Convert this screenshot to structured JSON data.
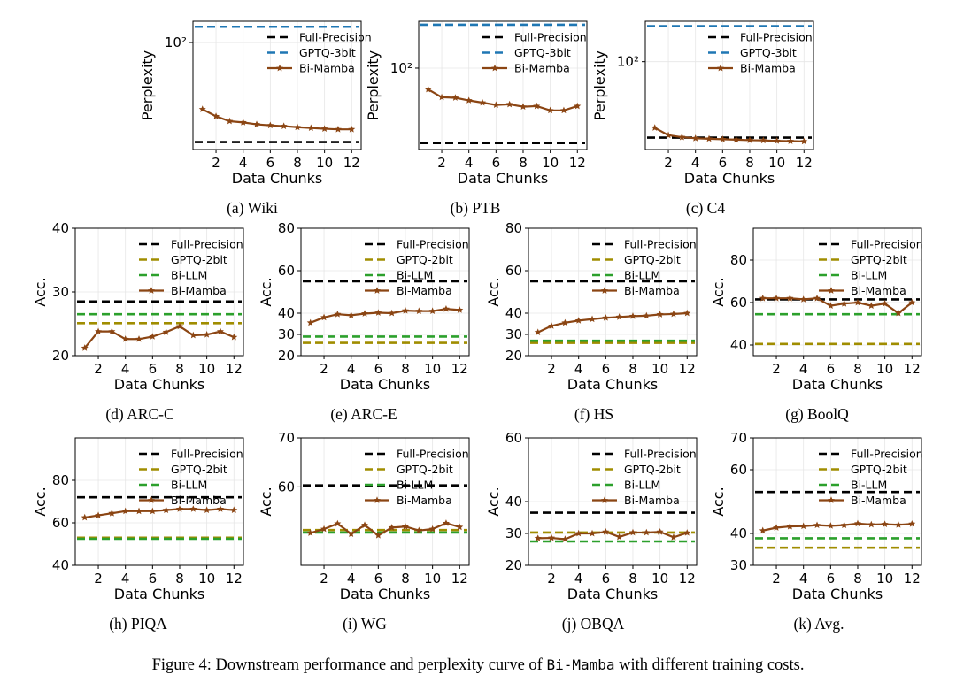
{
  "figure_caption": {
    "prefix": "Figure 4: Downstream performance and perplexity curve of ",
    "model": "Bi-Mamba",
    "suffix": " with different training costs."
  },
  "colors": {
    "full_precision": "#000000",
    "gptq_3bit": "#1f77b4",
    "gptq_2bit": "#a08d00",
    "bi_llm": "#2ca02c",
    "bi_mamba": "#8b4513"
  },
  "chart_data": [
    {
      "id": "wiki",
      "type": "line",
      "subcaption": "(a) Wiki",
      "xlabel": "Data Chunks",
      "ylabel": "Perplexity",
      "yscale": "log",
      "ylim": [
        13,
        150
      ],
      "xlim": [
        0.3,
        12.7
      ],
      "xticks": [
        2,
        4,
        6,
        8,
        10,
        12
      ],
      "yticks": [
        100
      ],
      "yticklabels": [
        "10²"
      ],
      "x": [
        1,
        2,
        3,
        4,
        5,
        6,
        7,
        8,
        9,
        10,
        11,
        12
      ],
      "series": [
        {
          "name": "Full-Precision",
          "style": "dashed",
          "color": "#000000",
          "value": 15
        },
        {
          "name": "GPTQ-3bit",
          "style": "dashed",
          "color": "#1f77b4",
          "value": 135
        },
        {
          "name": "Bi-Mamba",
          "style": "marker",
          "color": "#8b4513",
          "values": [
            28,
            24.5,
            22.3,
            21.8,
            21.0,
            20.6,
            20.3,
            19.9,
            19.6,
            19.3,
            19.1,
            19.1
          ]
        }
      ]
    },
    {
      "id": "ptb",
      "type": "line",
      "subcaption": "(b) PTB",
      "xlabel": "Data Chunks",
      "ylabel": "Perplexity",
      "yscale": "log",
      "ylim": [
        30,
        200
      ],
      "xlim": [
        0.3,
        12.7
      ],
      "xticks": [
        2,
        4,
        6,
        8,
        10,
        12
      ],
      "yticks": [
        100
      ],
      "yticklabels": [
        "10²"
      ],
      "x": [
        1,
        2,
        3,
        4,
        5,
        6,
        7,
        8,
        9,
        10,
        11,
        12
      ],
      "series": [
        {
          "name": "Full-Precision",
          "style": "dashed",
          "color": "#000000",
          "value": 33
        },
        {
          "name": "GPTQ-3bit",
          "style": "dashed",
          "color": "#1f77b4",
          "value": 190
        },
        {
          "name": "Bi-Mamba",
          "style": "marker",
          "color": "#8b4513",
          "values": [
            73,
            65,
            64.5,
            62,
            60,
            58,
            58.5,
            56.5,
            57,
            53.5,
            53.5,
            57
          ]
        }
      ]
    },
    {
      "id": "c4",
      "type": "line",
      "subcaption": "(c) C4",
      "xlabel": "Data Chunks",
      "ylabel": "Perplexity",
      "yscale": "log",
      "ylim": [
        18,
        220
      ],
      "xlim": [
        0.3,
        12.7
      ],
      "xticks": [
        2,
        4,
        6,
        8,
        10,
        12
      ],
      "yticks": [
        100
      ],
      "yticklabels": [
        "10²"
      ],
      "x": [
        1,
        2,
        3,
        4,
        5,
        6,
        7,
        8,
        9,
        10,
        11,
        12
      ],
      "series": [
        {
          "name": "Full-Precision",
          "style": "dashed",
          "color": "#000000",
          "value": 22.7
        },
        {
          "name": "GPTQ-3bit",
          "style": "dashed",
          "color": "#1f77b4",
          "value": 200
        },
        {
          "name": "Bi-Mamba",
          "style": "marker",
          "color": "#8b4513",
          "values": [
            27.5,
            23.8,
            22.9,
            22.4,
            22.2,
            22.0,
            21.8,
            21.6,
            21.5,
            21.3,
            21.2,
            21.1
          ]
        }
      ]
    },
    {
      "id": "arc_c",
      "type": "line",
      "subcaption": "(d) ARC-C",
      "xlabel": "Data Chunks",
      "ylabel": "Acc.",
      "yscale": "linear",
      "ylim": [
        20,
        40
      ],
      "xlim": [
        0.3,
        12.7
      ],
      "xticks": [
        2,
        4,
        6,
        8,
        10,
        12
      ],
      "yticks": [
        20,
        30,
        40
      ],
      "x": [
        1,
        2,
        3,
        4,
        5,
        6,
        7,
        8,
        9,
        10,
        11,
        12
      ],
      "series": [
        {
          "name": "Full-Precision",
          "style": "dashed",
          "color": "#000000",
          "value": 28.5
        },
        {
          "name": "GPTQ-2bit",
          "style": "dashed",
          "color": "#a08d00",
          "value": 25.1
        },
        {
          "name": "Bi-LLM",
          "style": "dashed",
          "color": "#2ca02c",
          "value": 26.5
        },
        {
          "name": "Bi-Mamba",
          "style": "marker",
          "color": "#8b4513",
          "values": [
            21.2,
            23.8,
            23.8,
            22.6,
            22.6,
            23.0,
            23.7,
            24.6,
            23.2,
            23.3,
            23.8,
            22.9
          ]
        }
      ]
    },
    {
      "id": "arc_e",
      "type": "line",
      "subcaption": "(e) ARC-E",
      "xlabel": "Data Chunks",
      "ylabel": "Acc.",
      "yscale": "linear",
      "ylim": [
        20,
        80
      ],
      "xlim": [
        0.3,
        12.7
      ],
      "xticks": [
        2,
        4,
        6,
        8,
        10,
        12
      ],
      "yticks": [
        20,
        30,
        40,
        60,
        80
      ],
      "x": [
        1,
        2,
        3,
        4,
        5,
        6,
        7,
        8,
        9,
        10,
        11,
        12
      ],
      "series": [
        {
          "name": "Full-Precision",
          "style": "dashed",
          "color": "#000000",
          "value": 55
        },
        {
          "name": "GPTQ-2bit",
          "style": "dashed",
          "color": "#a08d00",
          "value": 26
        },
        {
          "name": "Bi-LLM",
          "style": "dashed",
          "color": "#2ca02c",
          "value": 29
        },
        {
          "name": "Bi-Mamba",
          "style": "marker",
          "color": "#8b4513",
          "values": [
            35.5,
            38,
            39.5,
            39,
            39.8,
            40.2,
            40,
            41.2,
            41,
            41,
            42,
            41.5
          ]
        }
      ]
    },
    {
      "id": "hs",
      "type": "line",
      "subcaption": "(f) HS",
      "xlabel": "Data Chunks",
      "ylabel": "Acc.",
      "yscale": "linear",
      "ylim": [
        20,
        80
      ],
      "xlim": [
        0.3,
        12.7
      ],
      "xticks": [
        2,
        4,
        6,
        8,
        10,
        12
      ],
      "yticks": [
        20,
        30,
        40,
        60,
        80
      ],
      "x": [
        1,
        2,
        3,
        4,
        5,
        6,
        7,
        8,
        9,
        10,
        11,
        12
      ],
      "series": [
        {
          "name": "Full-Precision",
          "style": "dashed",
          "color": "#000000",
          "value": 55
        },
        {
          "name": "GPTQ-2bit",
          "style": "dashed",
          "color": "#a08d00",
          "value": 26
        },
        {
          "name": "Bi-LLM",
          "style": "dashed",
          "color": "#2ca02c",
          "value": 27
        },
        {
          "name": "Bi-Mamba",
          "style": "marker",
          "color": "#8b4513",
          "values": [
            31,
            34,
            35.5,
            36.5,
            37.2,
            37.8,
            38.2,
            38.6,
            38.8,
            39.4,
            39.6,
            40
          ]
        }
      ]
    },
    {
      "id": "boolq",
      "type": "line",
      "subcaption": "(g) BoolQ",
      "xlabel": "Data Chunks",
      "ylabel": "Acc.",
      "yscale": "linear",
      "ylim": [
        35,
        95
      ],
      "xlim": [
        0.3,
        12.7
      ],
      "xticks": [
        2,
        4,
        6,
        8,
        10,
        12
      ],
      "yticks": [
        40,
        60,
        80
      ],
      "x": [
        1,
        2,
        3,
        4,
        5,
        6,
        7,
        8,
        9,
        10,
        11,
        12
      ],
      "series": [
        {
          "name": "Full-Precision",
          "style": "dashed",
          "color": "#000000",
          "value": 61.5
        },
        {
          "name": "GPTQ-2bit",
          "style": "dashed",
          "color": "#a08d00",
          "value": 40.5
        },
        {
          "name": "Bi-LLM",
          "style": "dashed",
          "color": "#2ca02c",
          "value": 54.5
        },
        {
          "name": "Bi-Mamba",
          "style": "marker",
          "color": "#8b4513",
          "values": [
            62,
            62,
            62,
            61.5,
            62,
            58.5,
            59.5,
            60,
            58.5,
            59.5,
            55,
            60
          ]
        }
      ]
    },
    {
      "id": "piqa",
      "type": "line",
      "subcaption": "(h) PIQA",
      "xlabel": "Data Chunks",
      "ylabel": "Acc.",
      "yscale": "linear",
      "ylim": [
        40,
        100
      ],
      "xlim": [
        0.3,
        12.7
      ],
      "xticks": [
        2,
        4,
        6,
        8,
        10,
        12
      ],
      "yticks": [
        40,
        60,
        80
      ],
      "x": [
        1,
        2,
        3,
        4,
        5,
        6,
        7,
        8,
        9,
        10,
        11,
        12
      ],
      "series": [
        {
          "name": "Full-Precision",
          "style": "dashed",
          "color": "#000000",
          "value": 72
        },
        {
          "name": "GPTQ-2bit",
          "style": "dashed",
          "color": "#a08d00",
          "value": 53
        },
        {
          "name": "Bi-LLM",
          "style": "dashed",
          "color": "#2ca02c",
          "value": 52.5
        },
        {
          "name": "Bi-Mamba",
          "style": "marker",
          "color": "#8b4513",
          "values": [
            62.5,
            63.5,
            64.5,
            65.5,
            65.5,
            65.5,
            66,
            66.5,
            66.5,
            66,
            66.5,
            66
          ]
        }
      ]
    },
    {
      "id": "wg",
      "type": "line",
      "subcaption": "(i) WG",
      "xlabel": "Data Chunks",
      "ylabel": "Acc.",
      "yscale": "linear",
      "ylim": [
        44,
        70
      ],
      "xlim": [
        0.3,
        12.7
      ],
      "xticks": [
        2,
        4,
        6,
        8,
        10,
        12
      ],
      "yticks": [
        60,
        70
      ],
      "x": [
        1,
        2,
        3,
        4,
        5,
        6,
        7,
        8,
        9,
        10,
        11,
        12
      ],
      "series": [
        {
          "name": "Full-Precision",
          "style": "dashed",
          "color": "#000000",
          "value": 60.3
        },
        {
          "name": "GPTQ-2bit",
          "style": "dashed",
          "color": "#a08d00",
          "value": 51.2
        },
        {
          "name": "Bi-LLM",
          "style": "dashed",
          "color": "#2ca02c",
          "value": 50.7
        },
        {
          "name": "Bi-Mamba",
          "style": "marker",
          "color": "#8b4513",
          "values": [
            50.6,
            51.4,
            52.5,
            50.4,
            52.2,
            50.1,
            51.7,
            51.9,
            51.1,
            51.4,
            52.6,
            51.8
          ]
        }
      ]
    },
    {
      "id": "obqa",
      "type": "line",
      "subcaption": "(j) OBQA",
      "xlabel": "Data Chunks",
      "ylabel": "Acc.",
      "yscale": "linear",
      "ylim": [
        20,
        60
      ],
      "xlim": [
        0.3,
        12.7
      ],
      "xticks": [
        2,
        4,
        6,
        8,
        10,
        12
      ],
      "yticks": [
        20,
        30,
        40,
        60
      ],
      "x": [
        1,
        2,
        3,
        4,
        5,
        6,
        7,
        8,
        9,
        10,
        11,
        12
      ],
      "series": [
        {
          "name": "Full-Precision",
          "style": "dashed",
          "color": "#000000",
          "value": 36.5
        },
        {
          "name": "GPTQ-2bit",
          "style": "dashed",
          "color": "#a08d00",
          "value": 30.3
        },
        {
          "name": "Bi-LLM",
          "style": "dashed",
          "color": "#2ca02c",
          "value": 27.5
        },
        {
          "name": "Bi-Mamba",
          "style": "marker",
          "color": "#8b4513",
          "values": [
            28.5,
            28.6,
            28.2,
            30,
            30,
            30.5,
            28.9,
            30.3,
            30.3,
            30.5,
            28.8,
            30.2
          ]
        }
      ]
    },
    {
      "id": "avg",
      "type": "line",
      "subcaption": "(k) Avg.",
      "xlabel": "Data Chunks",
      "ylabel": "Acc.",
      "yscale": "linear",
      "ylim": [
        30,
        70
      ],
      "xlim": [
        0.3,
        12.7
      ],
      "xticks": [
        2,
        4,
        6,
        8,
        10,
        12
      ],
      "yticks": [
        30,
        40,
        60,
        70
      ],
      "x": [
        1,
        2,
        3,
        4,
        5,
        6,
        7,
        8,
        9,
        10,
        11,
        12
      ],
      "series": [
        {
          "name": "Full-Precision",
          "style": "dashed",
          "color": "#000000",
          "value": 53
        },
        {
          "name": "GPTQ-2bit",
          "style": "dashed",
          "color": "#a08d00",
          "value": 35.5
        },
        {
          "name": "Bi-LLM",
          "style": "dashed",
          "color": "#2ca02c",
          "value": 38.5
        },
        {
          "name": "Bi-Mamba",
          "style": "marker",
          "color": "#8b4513",
          "values": [
            40.9,
            41.8,
            42.2,
            42.3,
            42.6,
            42.4,
            42.6,
            43.1,
            42.8,
            42.9,
            42.7,
            43
          ]
        }
      ]
    }
  ]
}
